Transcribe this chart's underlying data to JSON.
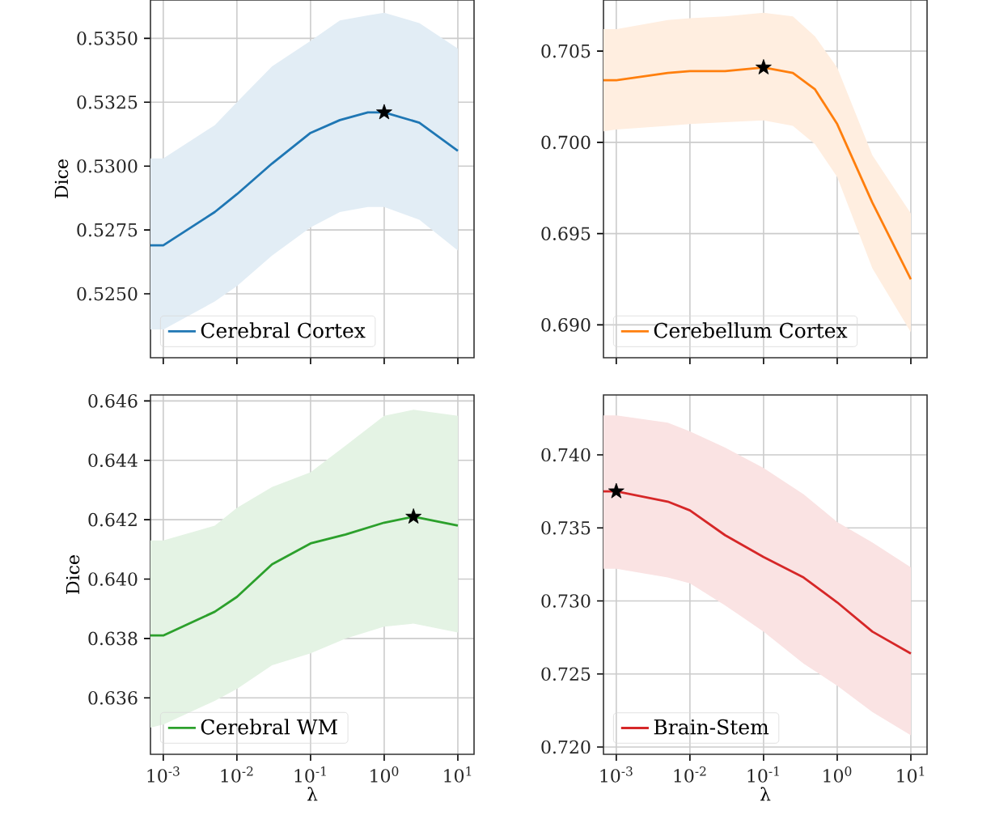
{
  "chart_data": [
    {
      "type": "line",
      "ylabel": "Dice",
      "log": "x",
      "grid": true,
      "legend": "bottom left",
      "tick_labels": "y",
      "xlim": [
        0.00067,
        16.6
      ],
      "ylim": [
        0.5225,
        0.5365
      ],
      "xticks": [
        {
          "value": 0.001,
          "label": null
        },
        {
          "value": 0.01,
          "label": null
        },
        {
          "value": 0.1,
          "label": null
        },
        {
          "value": 1,
          "label": null
        },
        {
          "value": 10,
          "label": null
        }
      ],
      "yticks": [
        {
          "value": 0.525,
          "label": "0.5250"
        },
        0.5275,
        {
          "value": 0.53,
          "label": "0.5300"
        },
        0.5325,
        {
          "value": 0.535,
          "label": "0.5350"
        }
      ],
      "series": [
        {
          "name": "Cerebral Cortex",
          "color": "#1f77b4",
          "x": [
            0.00067,
            0.001,
            0.005,
            0.01,
            0.03,
            0.1,
            0.25,
            0.6,
            1,
            3,
            10
          ],
          "values": [
            0.5269,
            0.5269,
            0.5282,
            0.5289,
            0.5301,
            0.5313,
            0.5318,
            0.5321,
            0.5321,
            0.5317,
            0.5306
          ],
          "upper": [
            0.5303,
            0.5303,
            0.5316,
            0.5325,
            0.5339,
            0.5349,
            0.5357,
            0.5359,
            0.536,
            0.5356,
            0.5346
          ],
          "lower": [
            0.5236,
            0.5236,
            0.5247,
            0.5253,
            0.5265,
            0.5276,
            0.5282,
            0.5284,
            0.5284,
            0.5279,
            0.5267
          ]
        },
        {
          "type": "scatter",
          "marker": "star",
          "color": "#000000",
          "x": [
            1
          ],
          "values": [
            0.5321
          ]
        }
      ]
    },
    {
      "type": "line",
      "log": "x",
      "grid": true,
      "legend": "bottom left",
      "tick_labels": "y",
      "xlim": [
        0.00067,
        16.6
      ],
      "ylim": [
        0.6882,
        0.7078
      ],
      "xticks": [
        {
          "value": 0.001,
          "label": null
        },
        {
          "value": 0.01,
          "label": null
        },
        {
          "value": 0.1,
          "label": null
        },
        {
          "value": 1,
          "label": null
        },
        {
          "value": 10,
          "label": null
        }
      ],
      "yticks": [
        {
          "value": 0.69,
          "label": "0.690"
        },
        0.695,
        {
          "value": 0.7,
          "label": "0.700"
        },
        0.705
      ],
      "series": [
        {
          "name": "Cerebellum Cortex",
          "color": "#ff7f0e",
          "x": [
            0.00067,
            0.001,
            0.005,
            0.01,
            0.03,
            0.1,
            0.25,
            0.5,
            1,
            3,
            10
          ],
          "values": [
            0.7034,
            0.7034,
            0.7038,
            0.7039,
            0.7039,
            0.7041,
            0.7038,
            0.7029,
            0.701,
            0.6967,
            0.6925
          ],
          "upper": [
            0.7062,
            0.7062,
            0.7067,
            0.7068,
            0.7069,
            0.7071,
            0.7069,
            0.7058,
            0.7041,
            0.6993,
            0.6961
          ],
          "lower": [
            0.7006,
            0.7007,
            0.7009,
            0.701,
            0.7011,
            0.7012,
            0.7009,
            0.6999,
            0.6981,
            0.6931,
            0.6896
          ]
        },
        {
          "type": "scatter",
          "marker": "star",
          "color": "#000000",
          "x": [
            0.1
          ],
          "values": [
            0.7041
          ]
        }
      ]
    },
    {
      "type": "line",
      "xlabel": "λ",
      "ylabel": "Dice",
      "log": "x",
      "grid": true,
      "legend": "bottom left",
      "xlim": [
        0.00067,
        16.6
      ],
      "ylim": [
        0.6341,
        0.6462
      ],
      "xticks": [
        {
          "value": 0.001,
          "label": "10$^{-3}$"
        },
        {
          "value": 0.01,
          "label": "10$^{-2}$"
        },
        {
          "value": 0.1,
          "label": "10$^{-1}$"
        },
        {
          "value": 1,
          "label": "10$^{0}$"
        },
        {
          "value": 10,
          "label": "10$^{1}$"
        }
      ],
      "yticks": [
        0.636,
        0.638,
        {
          "value": 0.64,
          "label": "0.640"
        },
        0.642,
        0.644,
        0.646
      ],
      "series": [
        {
          "name": "Cerebral WM",
          "color": "#2ca02c",
          "x": [
            0.00067,
            0.001,
            0.005,
            0.01,
            0.03,
            0.1,
            0.3,
            1,
            2.5,
            10
          ],
          "values": [
            0.6381,
            0.6381,
            0.6389,
            0.6394,
            0.6405,
            0.6412,
            0.6415,
            0.6419,
            0.6421,
            0.6418
          ],
          "upper": [
            0.6413,
            0.6413,
            0.6418,
            0.6424,
            0.6431,
            0.6436,
            0.6445,
            0.6455,
            0.6457,
            0.6455
          ],
          "lower": [
            0.635,
            0.6351,
            0.6359,
            0.6363,
            0.6371,
            0.6375,
            0.638,
            0.6384,
            0.6385,
            0.6382
          ]
        },
        {
          "type": "scatter",
          "marker": "star",
          "color": "#000000",
          "x": [
            2.5
          ],
          "values": [
            0.6421
          ]
        }
      ]
    },
    {
      "type": "line",
      "xlabel": "λ",
      "log": "x",
      "grid": true,
      "legend": "bottom left",
      "xlim": [
        0.00067,
        16.6
      ],
      "ylim": [
        0.7195,
        0.7441
      ],
      "xticks": [
        {
          "value": 0.001,
          "label": "10$^{-3}$"
        },
        {
          "value": 0.01,
          "label": "10$^{-2}$"
        },
        {
          "value": 0.1,
          "label": "10$^{-1}$"
        },
        {
          "value": 1,
          "label": "10$^{0}$"
        },
        {
          "value": 10,
          "label": "10$^{1}$"
        }
      ],
      "yticks": [
        {
          "value": 0.72,
          "label": "0.720"
        },
        0.725,
        {
          "value": 0.73,
          "label": "0.730"
        },
        0.735,
        {
          "value": 0.74,
          "label": "0.740"
        }
      ],
      "series": [
        {
          "name": "Brain-Stem",
          "color": "#d62728",
          "x": [
            0.00067,
            0.001,
            0.005,
            0.01,
            0.03,
            0.1,
            0.35,
            1,
            3,
            10
          ],
          "values": [
            0.7375,
            0.7375,
            0.7368,
            0.7362,
            0.7345,
            0.733,
            0.7316,
            0.7299,
            0.7279,
            0.7264
          ],
          "upper": [
            0.7427,
            0.7427,
            0.7422,
            0.7416,
            0.7405,
            0.7391,
            0.7373,
            0.7354,
            0.734,
            0.7323
          ],
          "lower": [
            0.7322,
            0.7322,
            0.7316,
            0.7312,
            0.7297,
            0.7279,
            0.7257,
            0.7242,
            0.7224,
            0.7208
          ]
        },
        {
          "type": "scatter",
          "marker": "star",
          "color": "#000000",
          "x": [
            0.001
          ],
          "values": [
            0.7375
          ]
        }
      ]
    }
  ]
}
